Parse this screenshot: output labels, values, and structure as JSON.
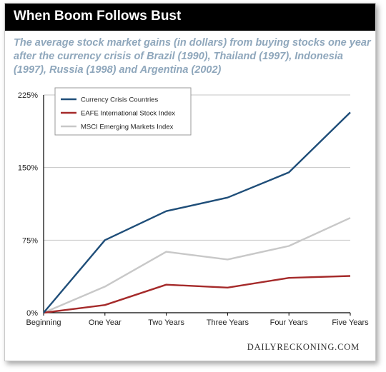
{
  "header": {
    "title": "When Boom Follows Bust"
  },
  "subtitle": "The average stock market gains (in dollars) from buying stocks one year after the currency crisis of Brazil (1990), Thailand (1997), Indonesia (1997), Russia (1998) and Argentina (2002)",
  "source": "DAILYRECKONING.COM",
  "chart_data": {
    "type": "line",
    "title": "When Boom Follows Bust",
    "xlabel": "",
    "ylabel": "",
    "categories": [
      "Beginning",
      "One Year",
      "Two Years",
      "Three Years",
      "Four Years",
      "Five Years"
    ],
    "yticks": [
      "0%",
      "75%",
      "150%",
      "225%"
    ],
    "ylim": [
      0,
      225
    ],
    "grid": "horizontal",
    "legend_position": "top-left",
    "series": [
      {
        "name": "Currency Crisis Countries",
        "color": "#1f4e79",
        "values": [
          0,
          75,
          105,
          119,
          145,
          207
        ]
      },
      {
        "name": "EAFE International Stock Index",
        "color": "#a52a2a",
        "values": [
          0,
          8,
          29,
          26,
          36,
          38
        ]
      },
      {
        "name": "MSCI Emerging Markets Index",
        "color": "#c8c8c8",
        "values": [
          0,
          27,
          63,
          55,
          69,
          98
        ]
      }
    ]
  }
}
